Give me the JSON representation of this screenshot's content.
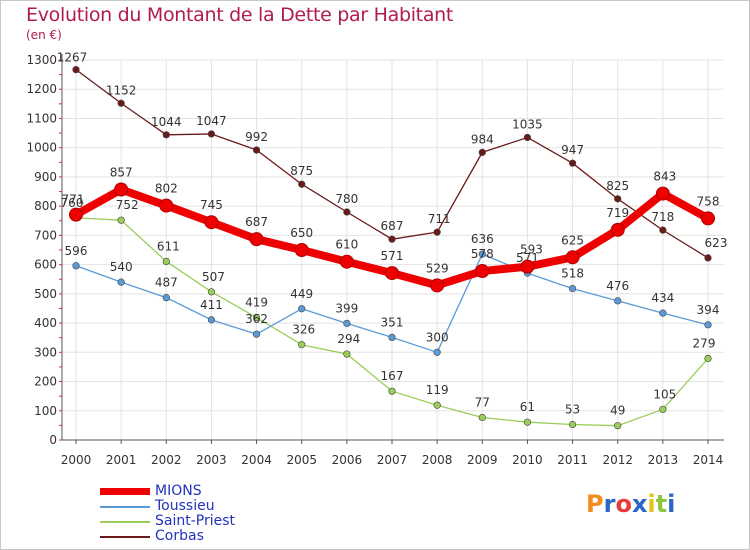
{
  "title": "Evolution du Montant de la Dette par Habitant",
  "unit": "(en €)",
  "brand": [
    "P",
    "r",
    "o",
    "x",
    "i",
    "t",
    "i"
  ],
  "chart_data": {
    "type": "line",
    "x": [
      "2000",
      "2001",
      "2002",
      "2003",
      "2004",
      "2005",
      "2006",
      "2007",
      "2008",
      "2009",
      "2010",
      "2011",
      "2012",
      "2013",
      "2014"
    ],
    "ylim": [
      0,
      1300
    ],
    "yticks": [
      0,
      100,
      200,
      300,
      400,
      500,
      600,
      700,
      800,
      900,
      1000,
      1100,
      1200,
      1300
    ],
    "grid": true,
    "legend_position": "bottom-left",
    "series": [
      {
        "name": "Corbas",
        "color": "#6b1a1a",
        "values": [
          1267,
          1152,
          1044,
          1047,
          992,
          875,
          780,
          687,
          711,
          984,
          1035,
          947,
          825,
          718,
          623
        ]
      },
      {
        "name": "Saint-Priest",
        "color": "#9acd5a",
        "values": [
          760,
          752,
          611,
          507,
          419,
          326,
          294,
          167,
          119,
          77,
          61,
          53,
          49,
          105,
          279
        ]
      },
      {
        "name": "Toussieu",
        "color": "#5b9bd5",
        "values": [
          596,
          540,
          487,
          411,
          362,
          449,
          399,
          351,
          300,
          636,
          571,
          518,
          476,
          434,
          394
        ]
      },
      {
        "name": "MIONS",
        "color": "#ee0000",
        "values": [
          771,
          857,
          802,
          745,
          687,
          650,
          610,
          571,
          529,
          578,
          593,
          625,
          719,
          843,
          758
        ]
      }
    ]
  }
}
